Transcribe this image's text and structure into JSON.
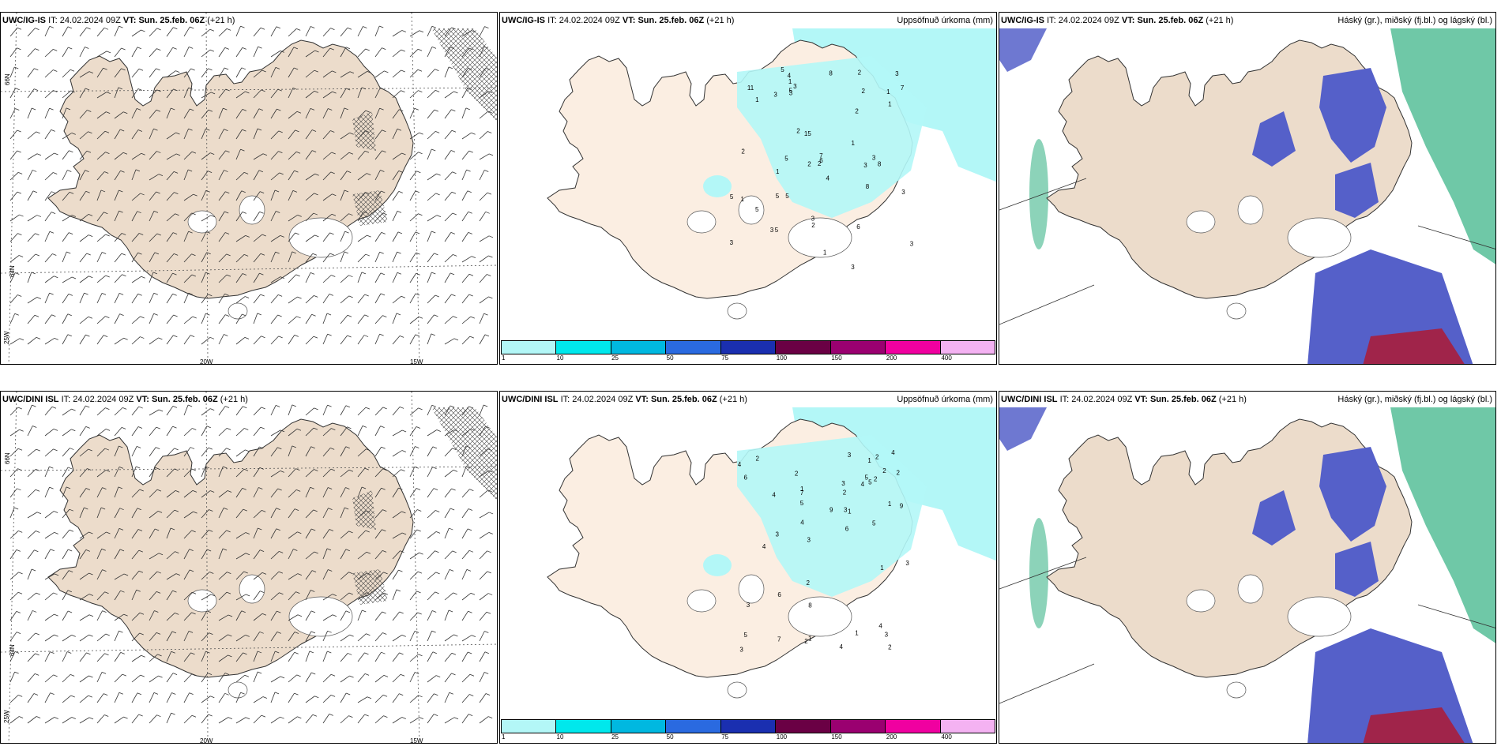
{
  "colors": {
    "land": "#ecdccb",
    "land_light": "#fbeee2",
    "sea": "#ffffff",
    "precip_light": "#b3f7f7",
    "cloud_high": "#5560c9",
    "cloud_mid": "#9bc8f0",
    "cloud_low_green": "#3fb58a",
    "cloud_red": "#a0244a"
  },
  "colorbar": {
    "colors": [
      "#b3f7f7",
      "#00e8ec",
      "#00b8e0",
      "#2a6ae0",
      "#1a2fb0",
      "#6a0044",
      "#9a0070",
      "#f000a0",
      "#f4b2f2"
    ],
    "ticks": [
      "1",
      "10",
      "25",
      "50",
      "75",
      "100",
      "150",
      "200",
      "400"
    ]
  },
  "panels": [
    {
      "model": "UWC/IG-IS",
      "it_label": "IT:",
      "it_value": "24.02.2024 09Z",
      "vt_label": "VT:",
      "vt_value": "Sun. 25.feb. 06Z",
      "lead": "(+21 h)",
      "right_title": "",
      "kind": "wind",
      "axis_labels": [
        "66N",
        "64N",
        "25W",
        "20W",
        "15W"
      ]
    },
    {
      "model": "UWC/IG-IS",
      "it_label": "IT:",
      "it_value": "24.02.2024 09Z",
      "vt_label": "VT:",
      "vt_value": "Sun. 25.feb. 06Z",
      "lead": "(+21 h)",
      "right_title": "Uppsöfnuð úrkoma (mm)",
      "kind": "precip",
      "axis_labels": [
        "66N",
        "64N"
      ],
      "values": [
        "2",
        "5",
        "11",
        "5",
        "3",
        "1",
        "3",
        "3",
        "8",
        "3",
        "5",
        "1",
        "2",
        "3",
        "5",
        "2",
        "3",
        "1",
        "1",
        "4",
        "7",
        "3",
        "1",
        "3",
        "5",
        "15",
        "8",
        "1",
        "1",
        "3",
        "5",
        "5",
        "2",
        "1",
        "7",
        "3",
        "2",
        "2",
        "2",
        "2",
        "5",
        "3",
        "4",
        "6",
        "8",
        "3",
        "6"
      ]
    },
    {
      "model": "UWC/IG-IS",
      "it_label": "IT:",
      "it_value": "24.02.2024 09Z",
      "vt_label": "VT:",
      "vt_value": "Sun. 25.feb. 06Z",
      "lead": "(+21 h)",
      "right_title": "Háský (gr.), miðský (fj.bl.) og lágský (bl.)",
      "kind": "cloud"
    },
    {
      "model": "UWC/DINI ISL",
      "it_label": "IT:",
      "it_value": "24.02.2024 09Z",
      "vt_label": "VT:",
      "vt_value": "Sun. 25.feb. 06Z",
      "lead": "(+21 h)",
      "right_title": "",
      "kind": "wind",
      "axis_labels": [
        "66N",
        "64N",
        "25W",
        "20W",
        "15W"
      ]
    },
    {
      "model": "UWC/DINI ISL",
      "it_label": "IT:",
      "it_value": "24.02.2024 09Z",
      "vt_label": "VT:",
      "vt_value": "Sun. 25.feb. 06Z",
      "lead": "(+21 h)",
      "right_title": "Uppsöfnuð úrkoma (mm)",
      "kind": "precip",
      "axis_labels": [
        "66N",
        "64N"
      ],
      "values": [
        "4",
        "5",
        "9",
        "4",
        "5",
        "2",
        "4",
        "3",
        "6",
        "8",
        "5",
        "6",
        "2",
        "3",
        "3",
        "1",
        "2",
        "1",
        "4",
        "3",
        "3",
        "5",
        "1",
        "9",
        "3",
        "3",
        "3",
        "2",
        "6",
        "5",
        "4",
        "1",
        "7",
        "2",
        "2",
        "1",
        "2",
        "4",
        "4",
        "7",
        "3",
        "2",
        "1",
        "2",
        "4",
        "2",
        "1"
      ]
    },
    {
      "model": "UWC/DINI ISL",
      "it_label": "IT:",
      "it_value": "24.02.2024 09Z",
      "vt_label": "VT:",
      "vt_value": "Sun. 25.feb. 06Z",
      "lead": "(+21 h)",
      "right_title": "Háský (gr.), miðský (fj.bl.) og lágský (bl.)",
      "kind": "cloud"
    }
  ]
}
